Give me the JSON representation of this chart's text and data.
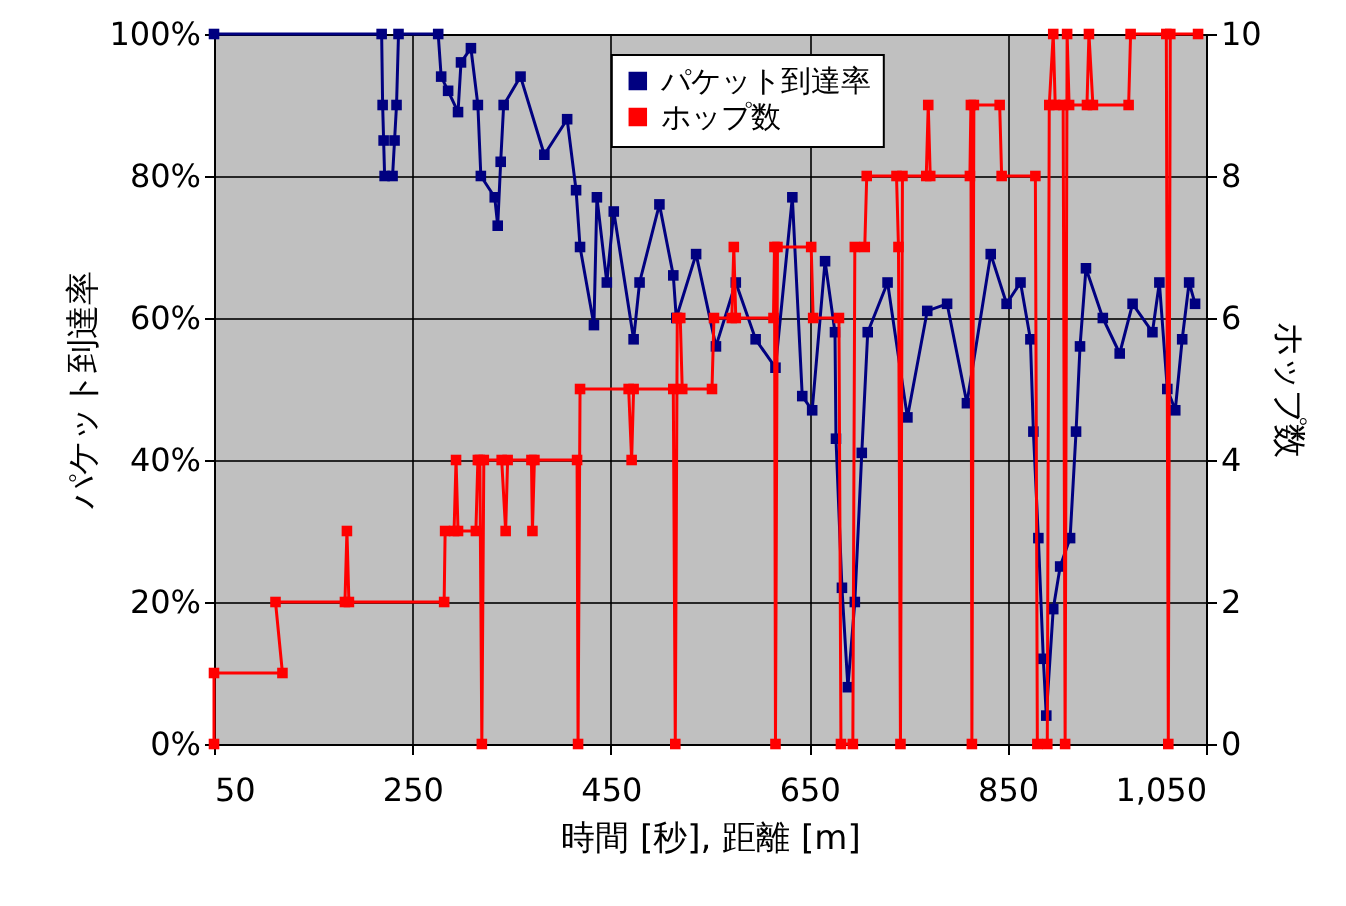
{
  "chart_data": {
    "type": "line",
    "xlabel": "時間 [秒], 距離 [m]",
    "ylabel": "パケット到達率",
    "y2label": "ホップ数",
    "xlim": [
      50,
      1050
    ],
    "xticks": [
      {
        "value": 50,
        "label": "50"
      },
      {
        "value": 250,
        "label": "250"
      },
      {
        "value": 450,
        "label": "450"
      },
      {
        "value": 650,
        "label": "650"
      },
      {
        "value": 850,
        "label": "850"
      },
      {
        "value": 1050,
        "label": "1,050"
      }
    ],
    "ylim": [
      0,
      100
    ],
    "yticks": [
      {
        "value": 0,
        "label": "0%"
      },
      {
        "value": 20,
        "label": "20%"
      },
      {
        "value": 40,
        "label": "40%"
      },
      {
        "value": 60,
        "label": "60%"
      },
      {
        "value": 80,
        "label": "80%"
      },
      {
        "value": 100,
        "label": "100%"
      }
    ],
    "y2lim": [
      0,
      10
    ],
    "y2ticks": [
      0,
      2,
      4,
      6,
      8,
      10
    ],
    "grid": true,
    "legend": "top",
    "marker": "square",
    "line_style": "solid",
    "series": [
      {
        "name": "パケット到達率",
        "color": "#000080",
        "x": [
          50,
          219,
          220,
          221,
          222,
          230,
          232,
          234,
          236,
          276,
          279,
          286,
          296,
          299,
          309,
          316,
          319,
          333,
          336,
          339,
          342,
          359,
          383,
          406,
          415,
          419,
          433,
          436,
          446,
          453,
          473,
          479,
          499,
          513,
          516,
          536,
          556,
          576,
          596,
          616,
          633,
          643,
          653,
          666,
          676,
          677,
          683,
          689,
          696,
          703,
          709,
          729,
          749,
          769,
          789,
          809,
          833,
          849,
          863,
          873,
          876,
          881,
          886,
          889,
          896,
          903,
          913,
          919,
          923,
          929,
          946,
          963,
          976,
          996,
          1003,
          1011,
          1019,
          1026,
          1033,
          1039
        ],
        "values": [
          100,
          100,
          90,
          85,
          80,
          80,
          85,
          90,
          100,
          100,
          94,
          92,
          89,
          96,
          98,
          90,
          80,
          77,
          73,
          82,
          90,
          94,
          83,
          88,
          78,
          70,
          59,
          77,
          65,
          75,
          57,
          65,
          76,
          66,
          60,
          69,
          56,
          65,
          57,
          53,
          77,
          49,
          47,
          68,
          58,
          43,
          22,
          8,
          20,
          41,
          58,
          65,
          46,
          61,
          62,
          48,
          69,
          62,
          65,
          57,
          44,
          29,
          12,
          4,
          19,
          25,
          29,
          44,
          56,
          67,
          60,
          55,
          62,
          58,
          65,
          50,
          47,
          57,
          65,
          62
        ]
      },
      {
        "name": "ホップ数",
        "color": "#ff0000",
        "axis": "y2",
        "x": [
          50,
          50,
          119,
          112,
          182,
          184,
          186,
          282,
          283,
          292,
          294,
          296,
          314,
          316,
          318,
          320,
          322,
          340,
          344,
          346,
          370,
          371,
          373,
          416,
          417,
          419,
          468,
          471,
          473,
          513,
          515,
          517,
          520,
          522,
          552,
          554,
          572,
          574,
          576,
          614,
          615,
          616,
          618,
          652,
          654,
          680,
          682,
          694,
          696,
          706,
          708,
          738,
          740,
          742,
          744,
          768,
          770,
          772,
          812,
          813,
          814,
          816,
          842,
          844,
          878,
          880,
          890,
          892,
          896,
          898,
          906,
          908,
          910,
          912,
          930,
          932,
          936,
          972,
          974,
          1010,
          1012,
          1014,
          1042
        ],
        "values": [
          0,
          1,
          1,
          2,
          2,
          3,
          2,
          2,
          3,
          3,
          4,
          3,
          3,
          4,
          4,
          0,
          4,
          4,
          3,
          4,
          4,
          3,
          4,
          4,
          0,
          5,
          5,
          4,
          5,
          5,
          0,
          6,
          6,
          5,
          5,
          6,
          6,
          7,
          6,
          6,
          7,
          0,
          7,
          7,
          6,
          6,
          0,
          0,
          7,
          7,
          8,
          8,
          7,
          0,
          8,
          8,
          9,
          8,
          8,
          9,
          0,
          9,
          9,
          8,
          8,
          0,
          0,
          9,
          10,
          9,
          9,
          0,
          10,
          9,
          9,
          10,
          9,
          9,
          10,
          10,
          0,
          10,
          10
        ]
      }
    ]
  }
}
